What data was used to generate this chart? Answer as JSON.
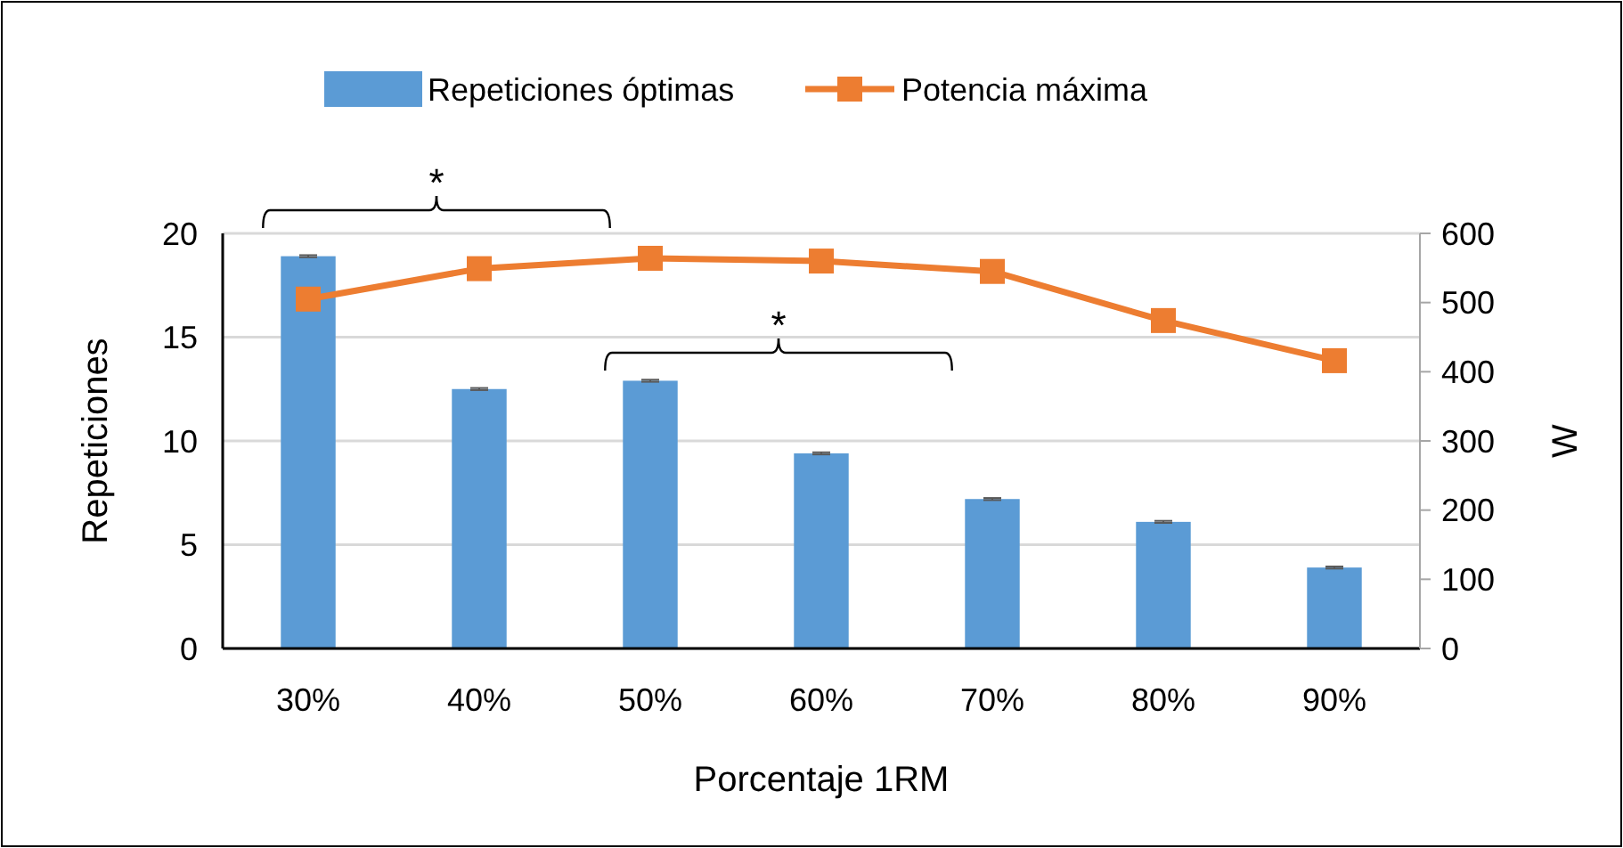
{
  "chart_data": {
    "type": "bar",
    "xlabel": "Porcentaje 1RM",
    "ylabel": "Repeticiones",
    "y2label": "W",
    "categories": [
      "30%",
      "40%",
      "50%",
      "60%",
      "70%",
      "80%",
      "90%"
    ],
    "series": [
      {
        "name": "Repeticiones óptimas",
        "color": "#5b9bd5",
        "values": [
          18.9,
          12.5,
          12.9,
          9.4,
          7.2,
          6.1,
          3.9
        ],
        "errors": [
          0.05,
          0.05,
          0.05,
          0.05,
          0.05,
          0.05,
          0.05
        ]
      },
      {
        "name": "Potencia máxima",
        "type": "line",
        "axis": "y2",
        "color": "#ed7d31",
        "values": [
          505,
          549,
          564,
          560,
          545,
          474,
          416
        ],
        "marker": "square"
      }
    ],
    "ylim": [
      0,
      20
    ],
    "yticks": [
      0,
      5,
      10,
      15,
      20
    ],
    "y2lim": [
      0,
      600
    ],
    "y2ticks": [
      0,
      100,
      200,
      300,
      400,
      500,
      600
    ],
    "grid": "y",
    "legend": "top",
    "annotations": [
      "*",
      "*"
    ]
  }
}
